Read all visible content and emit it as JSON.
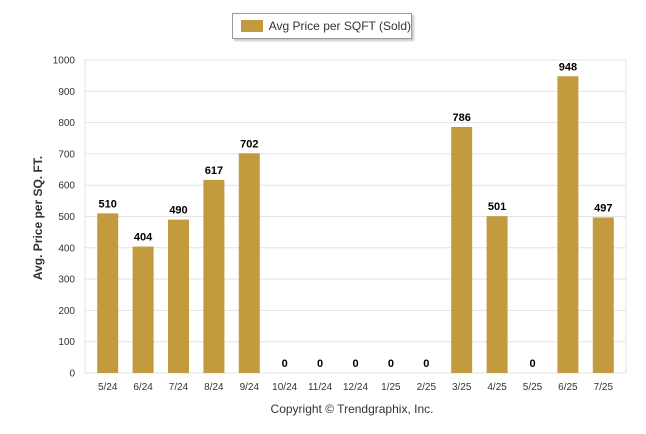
{
  "chart_data": {
    "type": "bar",
    "categories": [
      "5/24",
      "6/24",
      "7/24",
      "8/24",
      "9/24",
      "10/24",
      "11/24",
      "12/24",
      "1/25",
      "2/25",
      "3/25",
      "4/25",
      "5/25",
      "6/25",
      "7/25"
    ],
    "series": [
      {
        "name": "Avg Price per SQFT (Sold)",
        "values": [
          510,
          404,
          490,
          617,
          702,
          0,
          0,
          0,
          0,
          0,
          786,
          501,
          0,
          948,
          497
        ],
        "color": "#c39b3f"
      }
    ],
    "ylabel": "Avg. Price per SQ. FT.",
    "xlabel": "",
    "ylim": [
      0,
      1000
    ],
    "yticks": [
      0,
      100,
      200,
      300,
      400,
      500,
      600,
      700,
      800,
      900,
      1000
    ],
    "grid": true,
    "legend": "top-center"
  },
  "footer": "Copyright © Trendgraphix, Inc."
}
